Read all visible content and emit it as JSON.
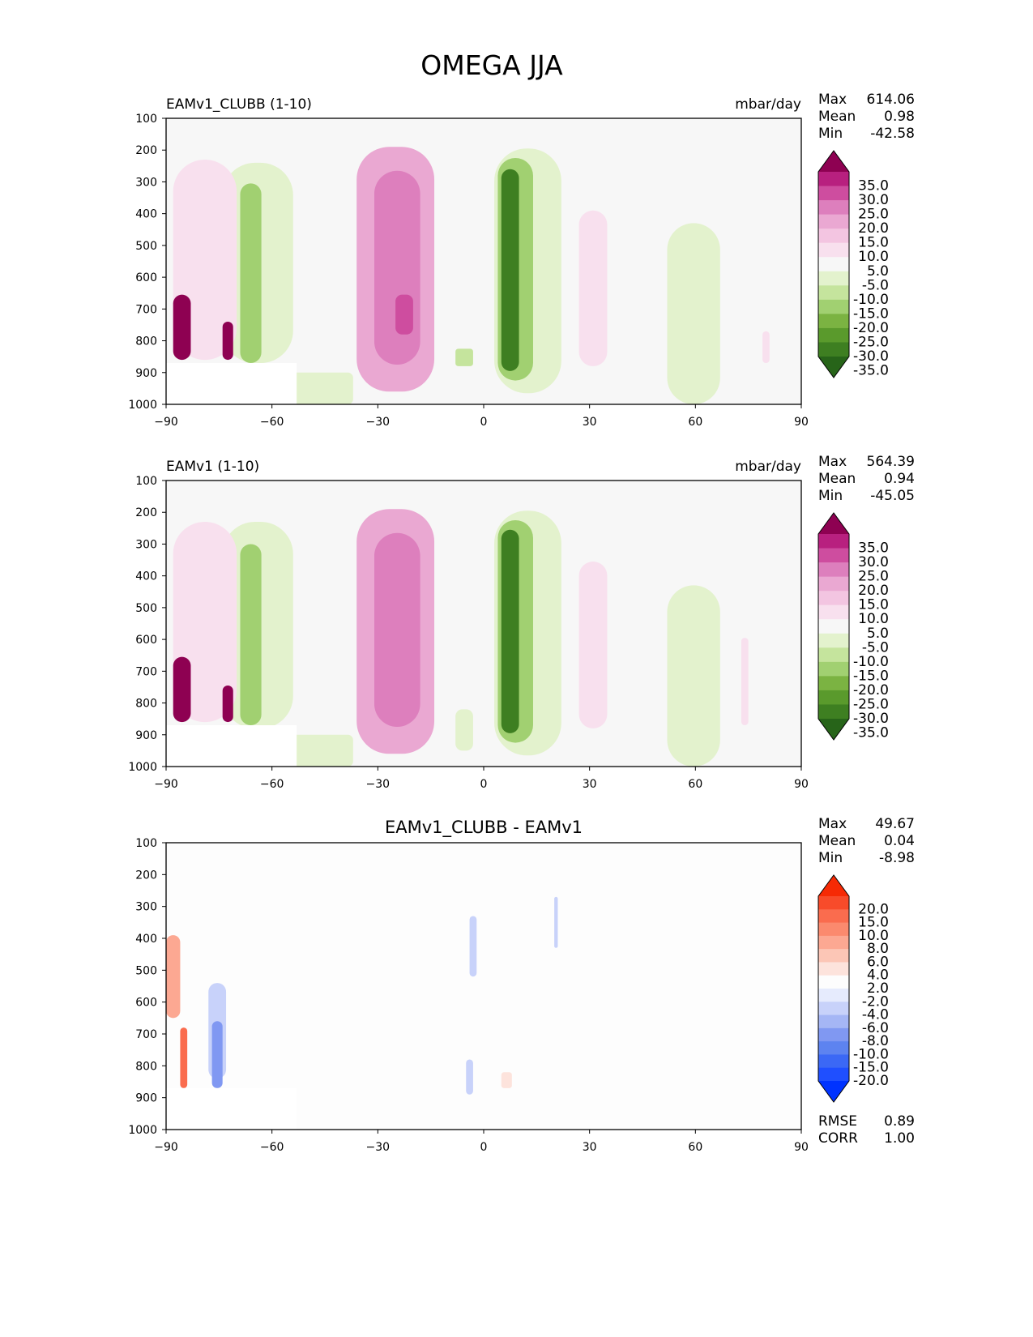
{
  "title": "OMEGA JJA",
  "xticks": [
    "−90",
    "−60",
    "−30",
    "0",
    "30",
    "60",
    "90"
  ],
  "yticks": [
    "100",
    "200",
    "300",
    "400",
    "500",
    "600",
    "700",
    "800",
    "900",
    "1000"
  ],
  "stat_labels": {
    "max": "Max",
    "mean": "Mean",
    "min": "Min",
    "rmse": "RMSE",
    "corr": "CORR"
  },
  "palettes": {
    "pinkgreen": [
      "#276419",
      "#3e7f21",
      "#5a9a2c",
      "#7bb342",
      "#a1d071",
      "#c5e49d",
      "#e3f2cd",
      "#f7f7f7",
      "#f8e0ee",
      "#f3c5e1",
      "#eaa8d2",
      "#dd7fbd",
      "#ce4d9f",
      "#b8207f",
      "#8e0152"
    ],
    "bluered": [
      "#0033ff",
      "#1f4fff",
      "#3b68f5",
      "#5d83f0",
      "#8098f2",
      "#a5b6f5",
      "#c8d2fa",
      "#e6ebfd",
      "#fdfdfd",
      "#fde3dc",
      "#fcc6b6",
      "#fca892",
      "#fb8a6e",
      "#fa6c4e",
      "#f84b2a",
      "#f62a05"
    ]
  },
  "chart_data": [
    {
      "type": "contour",
      "panel_title_left": "EAMv1_CLUBB (1-10)",
      "panel_title_right": "mbar/day",
      "xlabel": "",
      "ylabel": "",
      "xlim": [
        -90,
        90
      ],
      "ylim": [
        1000,
        100
      ],
      "stats": {
        "max": "614.06",
        "mean": "0.98",
        "min": "-42.58"
      },
      "colorbar": {
        "palette": "pinkgreen",
        "extend": "both",
        "labels": [
          "35.0",
          "30.0",
          "25.0",
          "20.0",
          "15.0",
          "10.0",
          "5.0",
          "-5.0",
          "-10.0",
          "-15.0",
          "-20.0",
          "-25.0",
          "-30.0",
          "-35.0"
        ]
      },
      "features": [
        {
          "lat": [
            -36,
            -14
          ],
          "p": [
            190,
            960
          ],
          "v": 16
        },
        {
          "lat": [
            -31,
            -18
          ],
          "p": [
            265,
            875
          ],
          "v": 22
        },
        {
          "lat": [
            -25,
            -20
          ],
          "p": [
            655,
            780
          ],
          "v": 28
        },
        {
          "lat": [
            3,
            22
          ],
          "p": [
            195,
            965
          ],
          "v": -10
        },
        {
          "lat": [
            4,
            14
          ],
          "p": [
            225,
            925
          ],
          "v": -20
        },
        {
          "lat": [
            5,
            10
          ],
          "p": [
            260,
            895
          ],
          "v": -34
        },
        {
          "lat": [
            -74,
            -54
          ],
          "p": [
            240,
            870
          ],
          "v": -8
        },
        {
          "lat": [
            -69,
            -63
          ],
          "p": [
            305,
            870
          ],
          "v": -18
        },
        {
          "lat": [
            -88,
            -70
          ],
          "p": [
            230,
            860
          ],
          "v": 7
        },
        {
          "lat": [
            -88,
            -83
          ],
          "p": [
            655,
            860
          ],
          "v": 36
        },
        {
          "lat": [
            -74,
            -71
          ],
          "p": [
            740,
            860
          ],
          "v": 36
        },
        {
          "lat": [
            27,
            35
          ],
          "p": [
            390,
            880
          ],
          "v": 7
        },
        {
          "lat": [
            52,
            67
          ],
          "p": [
            430,
            1000
          ],
          "v": -7
        },
        {
          "lat": [
            -8,
            -3
          ],
          "p": [
            825,
            880
          ],
          "v": -12
        },
        {
          "lat": [
            -55,
            -37
          ],
          "p": [
            900,
            1000
          ],
          "v": -6
        },
        {
          "lat": [
            79,
            81
          ],
          "p": [
            770,
            870
          ],
          "v": 7
        }
      ]
    },
    {
      "type": "contour",
      "panel_title_left": "EAMv1 (1-10)",
      "panel_title_right": "mbar/day",
      "xlabel": "",
      "ylabel": "",
      "xlim": [
        -90,
        90
      ],
      "ylim": [
        1000,
        100
      ],
      "stats": {
        "max": "564.39",
        "mean": "0.94",
        "min": "-45.05"
      },
      "colorbar": {
        "palette": "pinkgreen",
        "extend": "both",
        "labels": [
          "35.0",
          "30.0",
          "25.0",
          "20.0",
          "15.0",
          "10.0",
          "5.0",
          "-5.0",
          "-10.0",
          "-15.0",
          "-20.0",
          "-25.0",
          "-30.0",
          "-35.0"
        ]
      },
      "features": [
        {
          "lat": [
            -36,
            -14
          ],
          "p": [
            190,
            960
          ],
          "v": 16
        },
        {
          "lat": [
            -31,
            -18
          ],
          "p": [
            265,
            875
          ],
          "v": 22
        },
        {
          "lat": [
            3,
            22
          ],
          "p": [
            195,
            965
          ],
          "v": -10
        },
        {
          "lat": [
            4,
            14
          ],
          "p": [
            225,
            925
          ],
          "v": -20
        },
        {
          "lat": [
            5,
            10
          ],
          "p": [
            255,
            895
          ],
          "v": -34
        },
        {
          "lat": [
            -74,
            -54
          ],
          "p": [
            230,
            880
          ],
          "v": -8
        },
        {
          "lat": [
            -69,
            -63
          ],
          "p": [
            300,
            870
          ],
          "v": -18
        },
        {
          "lat": [
            -88,
            -70
          ],
          "p": [
            230,
            860
          ],
          "v": 7
        },
        {
          "lat": [
            -88,
            -83
          ],
          "p": [
            655,
            860
          ],
          "v": 36
        },
        {
          "lat": [
            -74,
            -71
          ],
          "p": [
            745,
            860
          ],
          "v": 36
        },
        {
          "lat": [
            27,
            35
          ],
          "p": [
            355,
            880
          ],
          "v": 7
        },
        {
          "lat": [
            52,
            67
          ],
          "p": [
            430,
            1000
          ],
          "v": -7
        },
        {
          "lat": [
            -8,
            -3
          ],
          "p": [
            820,
            950
          ],
          "v": -10
        },
        {
          "lat": [
            -55,
            -37
          ],
          "p": [
            900,
            1000
          ],
          "v": -6
        },
        {
          "lat": [
            73,
            75
          ],
          "p": [
            595,
            870
          ],
          "v": 7
        }
      ]
    },
    {
      "type": "contour",
      "panel_title_center": "EAMv1_CLUBB - EAMv1",
      "xlabel": "",
      "ylabel": "",
      "xlim": [
        -90,
        90
      ],
      "ylim": [
        1000,
        100
      ],
      "stats": {
        "max": "49.67",
        "mean": "0.04",
        "min": "-8.98",
        "rmse": "0.89",
        "corr": "1.00"
      },
      "colorbar": {
        "palette": "bluered",
        "extend": "both",
        "labels": [
          "20.0",
          "15.0",
          "10.0",
          "8.0",
          "6.0",
          "4.0",
          "2.0",
          "-2.0",
          "-4.0",
          "-6.0",
          "-8.0",
          "-10.0",
          "-15.0",
          "-20.0"
        ]
      },
      "features": [
        {
          "lat": [
            -90,
            -83
          ],
          "p": [
            310,
            870
          ],
          "v": 3
        },
        {
          "lat": [
            -90,
            -86
          ],
          "p": [
            390,
            650
          ],
          "v": 9
        },
        {
          "lat": [
            -86,
            -84
          ],
          "p": [
            680,
            870
          ],
          "v": 18
        },
        {
          "lat": [
            -83,
            -78
          ],
          "p": [
            580,
            870
          ],
          "v": 3
        },
        {
          "lat": [
            -78,
            -73
          ],
          "p": [
            540,
            840
          ],
          "v": -4
        },
        {
          "lat": [
            -77,
            -74
          ],
          "p": [
            660,
            870
          ],
          "v": -7
        },
        {
          "lat": [
            4,
            9
          ],
          "p": [
            255,
            975
          ],
          "v": 3
        },
        {
          "lat": [
            5,
            8
          ],
          "p": [
            820,
            870
          ],
          "v": 5
        },
        {
          "lat": [
            -4,
            -2
          ],
          "p": [
            330,
            520
          ],
          "v": -3
        },
        {
          "lat": [
            -5,
            -3
          ],
          "p": [
            780,
            890
          ],
          "v": -4
        },
        {
          "lat": [
            20,
            21
          ],
          "p": [
            270,
            430
          ],
          "v": -3
        }
      ]
    }
  ]
}
